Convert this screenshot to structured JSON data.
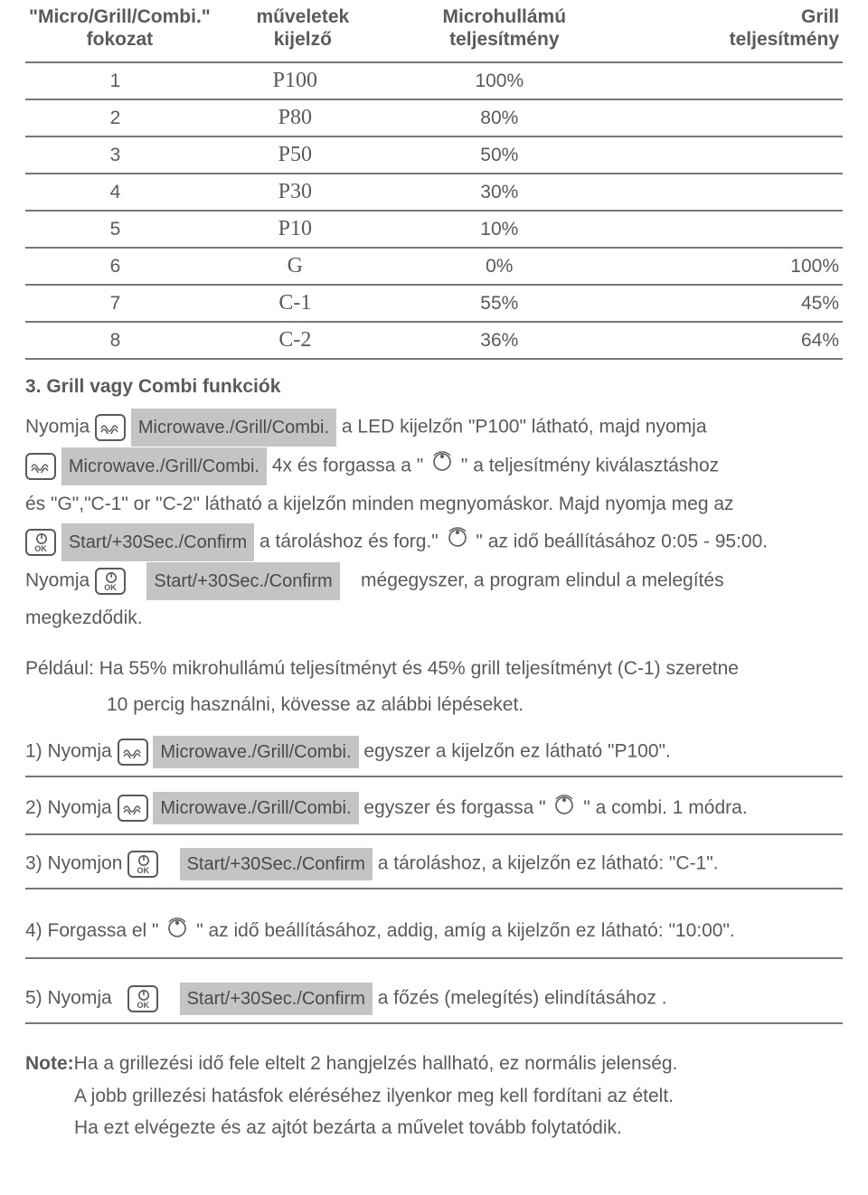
{
  "table": {
    "headers": {
      "level": "\"Micro/Grill/Combi.\"\nfokozat",
      "ops": "műveletek\nkijelző",
      "mw": "Microhullámú\nteljesítmény",
      "grill": "Grill\nteljesítmény"
    },
    "rows": [
      {
        "level": "1",
        "ops": "P100",
        "mw": "100%",
        "grill": ""
      },
      {
        "level": "2",
        "ops": "P80",
        "mw": "80%",
        "grill": ""
      },
      {
        "level": "3",
        "ops": "P50",
        "mw": "50%",
        "grill": ""
      },
      {
        "level": "4",
        "ops": "P30",
        "mw": "30%",
        "grill": ""
      },
      {
        "level": "5",
        "ops": "P10",
        "mw": "10%",
        "grill": ""
      },
      {
        "level": "6",
        "ops": "G",
        "mw": "0%",
        "grill": "100%"
      },
      {
        "level": "7",
        "ops": "C-1",
        "mw": "55%",
        "grill": "45%"
      },
      {
        "level": "8",
        "ops": "C-2",
        "mw": "36%",
        "grill": "64%"
      }
    ]
  },
  "section3_title": "3. Grill vagy Combi funkciók",
  "labels": {
    "mgc": "Microwave./Grill/Combi.",
    "start": "Start/+30Sec./Confirm"
  },
  "body": {
    "press": "Nyomja",
    "pressn": "Nyomjon",
    "led_p100": " a LED kijelzőn \"P100\" látható, majd nyomja",
    "fourx": " 4x és forgassa a     \"",
    "power_sel": "\" a teljesítmény kiválasztáshoz",
    "and_g": "és \"G\",\"C-1\" or \"C-2\" látható a kijelzőn minden megnyomáskor. Majd nyomja meg az",
    "store_turn": " a tároláshoz és forg.\"",
    "time_set": "\" az idő beállításához 0:05 - 95:00.",
    "once_more": "mégegyszer, a program elindul a melegítés megkezdődik.",
    "example1": "Például: Ha 55% mikrohullámú teljesítményt és 45% grill teljesítményt (C-1) szeretne",
    "example2": "10 percig használni, kövesse az alábbi lépéseket.",
    "step1_pre": "1) Nyomja",
    "step1_post": " egyszer a kijelzőn ez látható \"P100\".",
    "step2_pre": "2) Nyomja",
    "step2_mid": " egyszer és forgassa \"",
    "step2_post": "\" a combi. 1 módra.",
    "step3_pre": "3) Nyomjon",
    "step3_post": " a tároláshoz, a kijelzőn ez látható: \"C-1\".",
    "step4_pre": "4) Forgassa el \"",
    "step4_post": "\" az idő beállításához, addig, amíg a kijelzőn ez látható:  \"10:00\".",
    "step5_pre": "5) Nyomja",
    "step5_post": " a főzés (melegítés) elindításához .",
    "note_label": "Note:",
    "note1": "Ha a grillezési idő fele eltelt 2 hangjelzés hallható, ez normális jelenség.",
    "note2": "A jobb grillezési hatásfok eléréséhez ilyenkor meg kell fordítani az ételt.",
    "note3": "Ha ezt elvégezte és az ajtót bezárta a művelet tovább folytatódik."
  }
}
